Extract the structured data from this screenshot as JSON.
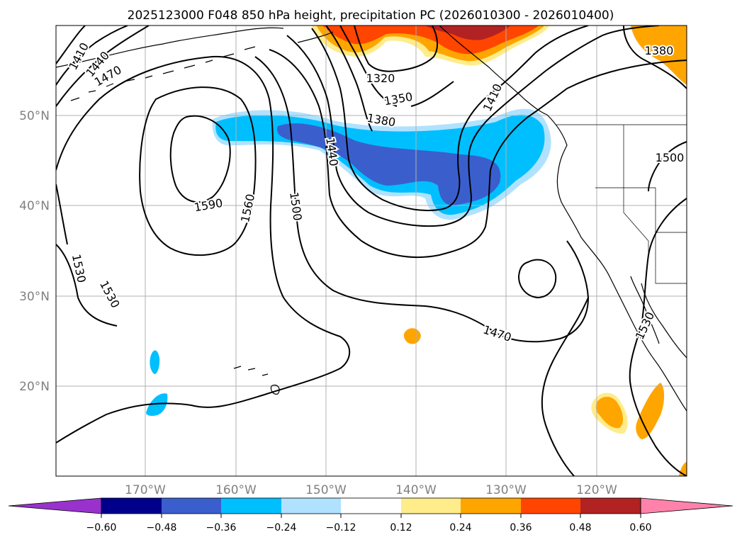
{
  "title": "2025123000 F048 850 hPa height, precipitation PC (2026010300 - 2026010400)",
  "map": {
    "lon_labels": [
      "170°W",
      "160°W",
      "150°W",
      "140°W",
      "130°W",
      "120°W"
    ],
    "lat_labels": [
      "50°N",
      "40°N",
      "30°N",
      "20°N"
    ],
    "contour_labels": [
      "1410",
      "1440",
      "1470",
      "1320",
      "1350",
      "1380",
      "1440",
      "1590",
      "1560",
      "1500",
      "1410",
      "1380",
      "1500",
      "1530",
      "1530",
      "1470",
      "1530"
    ],
    "colors": {
      "coast": "#000000",
      "grid": "#b0b0b0",
      "contour": "#000000"
    }
  },
  "colorbar": {
    "tick_labels": [
      "−0.60",
      "−0.48",
      "−0.36",
      "−0.24",
      "−0.12",
      "0.12",
      "0.24",
      "0.36",
      "0.48",
      "0.60"
    ],
    "colors": [
      "#9932cc",
      "#00008b",
      "#3a5fcd",
      "#00bfff",
      "#b0e2ff",
      "#ffffff",
      "#ffec8b",
      "#ffa500",
      "#ff4500",
      "#b22222",
      "#ff82ab"
    ]
  }
}
